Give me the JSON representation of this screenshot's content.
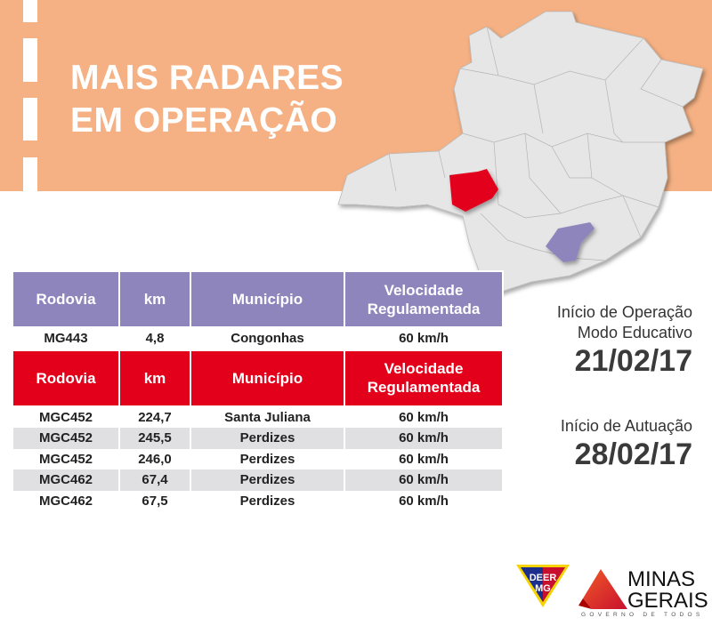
{
  "title": {
    "line1": "MAIS RADARES",
    "line2": "EM OPERAÇÃO"
  },
  "colors": {
    "band": "#F5B183",
    "purple": "#8E85BC",
    "red": "#E2001A",
    "map": "#E6E6E6"
  },
  "table_purple": {
    "headers": [
      "Rodovia",
      "km",
      "Município",
      "Velocidade Regulamentada"
    ],
    "rows": [
      [
        "MG443",
        "4,8",
        "Congonhas",
        "60 km/h"
      ]
    ]
  },
  "table_red": {
    "headers": [
      "Rodovia",
      "km",
      "Município",
      "Velocidade Regulamentada"
    ],
    "rows": [
      [
        "MGC452",
        "224,7",
        "Santa Juliana",
        "60 km/h"
      ],
      [
        "MGC452",
        "245,5",
        "Perdizes",
        "60 km/h"
      ],
      [
        "MGC452",
        "246,0",
        "Perdizes",
        "60 km/h"
      ],
      [
        "MGC462",
        "67,4",
        "Perdizes",
        "60 km/h"
      ],
      [
        "MGC462",
        "67,5",
        "Perdizes",
        "60 km/h"
      ]
    ]
  },
  "info": {
    "educativo_label1": "Início de Operação",
    "educativo_label2": "Modo Educativo",
    "educativo_date": "21/02/17",
    "autuacao_label": "Início de Autuação",
    "autuacao_date": "28/02/17"
  },
  "logos": {
    "deer": [
      "DEER",
      "MG"
    ],
    "minas": [
      "MINAS",
      "GERAIS"
    ],
    "tagline": "GOVERNO DE TODOS"
  }
}
